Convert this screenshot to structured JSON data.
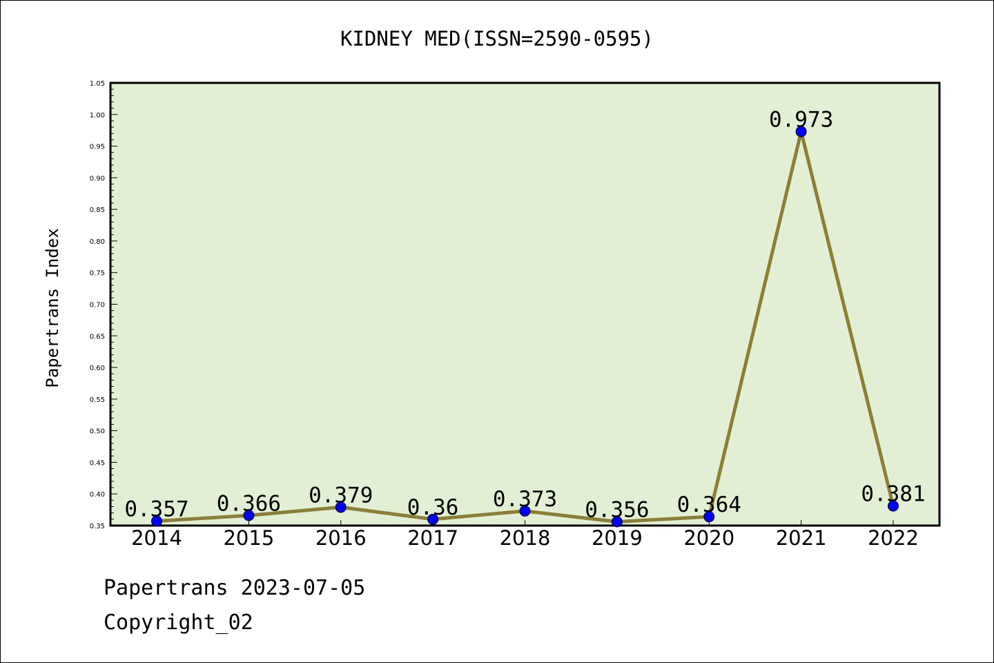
{
  "chart_data": {
    "type": "line",
    "title": "KIDNEY MED(ISSN=2590-0595)",
    "ylabel": "Papertrans Index",
    "xlabel": "",
    "categories": [
      "2014",
      "2015",
      "2016",
      "2017",
      "2018",
      "2019",
      "2020",
      "2021",
      "2022"
    ],
    "values": [
      0.357,
      0.366,
      0.379,
      0.36,
      0.373,
      0.356,
      0.364,
      0.973,
      0.381
    ],
    "data_labels": [
      "0.357",
      "0.366",
      "0.379",
      "0.36",
      "0.373",
      "0.356",
      "0.364",
      "0.973",
      "0.381"
    ],
    "ylim": [
      0.35,
      1.05
    ],
    "yticks": [
      "0.35",
      "0.40",
      "0.45",
      "0.50",
      "0.55",
      "0.60",
      "0.65",
      "0.70",
      "0.75",
      "0.80",
      "0.85",
      "0.90",
      "0.95",
      "1.00",
      "1.05"
    ],
    "grid": false,
    "legend": "none",
    "colors": {
      "plot_background": "#e2efd5",
      "line": "#8b7f35",
      "marker": "#0000ff"
    }
  },
  "footer": {
    "line1": "Papertrans 2023-07-05",
    "line2": "Copyright_02"
  }
}
